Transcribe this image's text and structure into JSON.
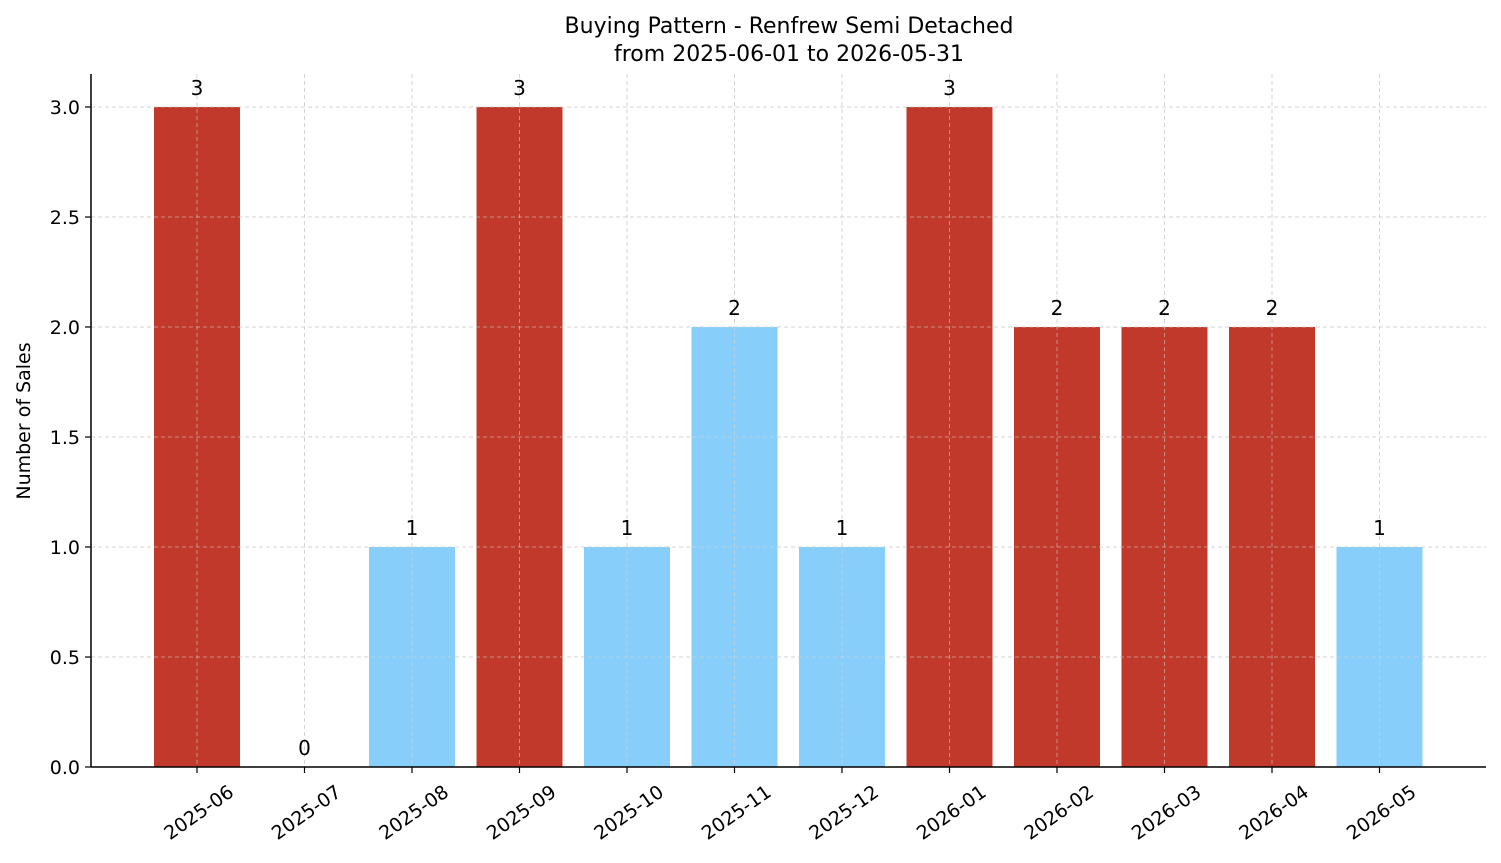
{
  "chart_data": {
    "type": "bar",
    "title": "Buying Pattern - Renfrew Semi Detached",
    "subtitle": "from 2025-06-01 to 2026-05-31",
    "xlabel": "",
    "ylabel": "Number of Sales",
    "categories": [
      "2025-06",
      "2025-07",
      "2025-08",
      "2025-09",
      "2025-10",
      "2025-11",
      "2025-12",
      "2026-01",
      "2026-02",
      "2026-03",
      "2026-04",
      "2026-05"
    ],
    "values": [
      3,
      0,
      1,
      3,
      1,
      2,
      1,
      3,
      2,
      2,
      2,
      1
    ],
    "data_labels": [
      "3",
      "0",
      "1",
      "3",
      "1",
      "2",
      "1",
      "3",
      "2",
      "2",
      "2",
      "1"
    ],
    "bar_colors": [
      "#c0392b",
      "#c0392b",
      "#87cefa",
      "#c0392b",
      "#87cefa",
      "#87cefa",
      "#87cefa",
      "#c0392b",
      "#c0392b",
      "#c0392b",
      "#c0392b",
      "#87cefa"
    ],
    "yticks": [
      "0.0",
      "0.5",
      "1.0",
      "1.5",
      "2.0",
      "2.5",
      "3.0"
    ],
    "ylim": [
      0,
      3.15
    ],
    "grid": true,
    "legend": "none"
  }
}
